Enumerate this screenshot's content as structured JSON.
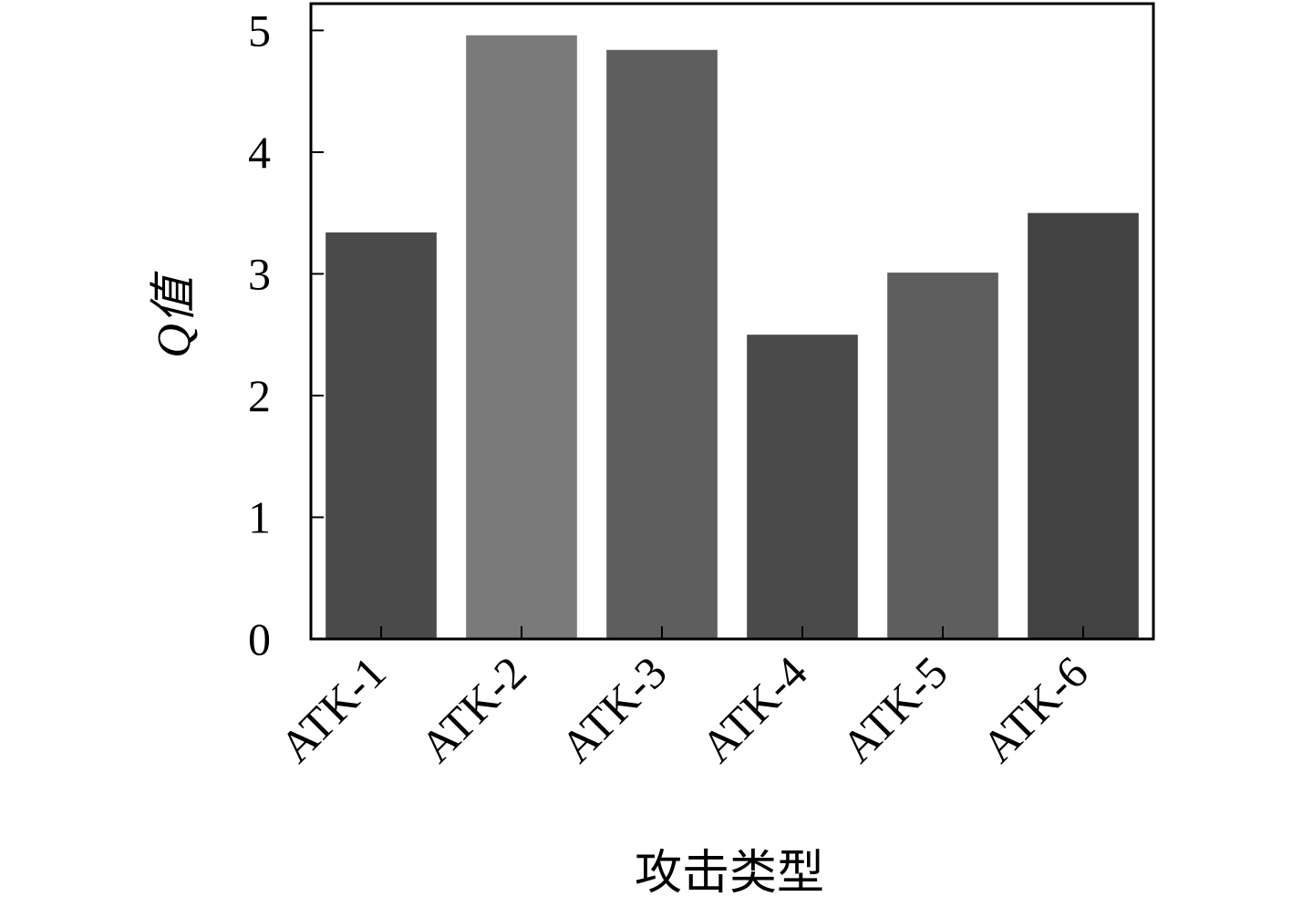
{
  "chart_data": {
    "type": "bar",
    "x_label": "攻击类型",
    "y_label": "Q值",
    "categories": [
      "ATK-1",
      "ATK-2",
      "ATK-3",
      "ATK-4",
      "ATK-5",
      "ATK-6"
    ],
    "values": [
      3.34,
      4.96,
      4.84,
      2.5,
      3.01,
      3.5
    ],
    "colors": [
      "#4a4a4a",
      "#7a7a7a",
      "#5e5e5e",
      "#4a4a4a",
      "#5e5e5e",
      "#424242"
    ],
    "ylim": [
      0,
      5.22
    ],
    "yticks": [
      0,
      1,
      2,
      3,
      4,
      5
    ],
    "grid": false
  }
}
